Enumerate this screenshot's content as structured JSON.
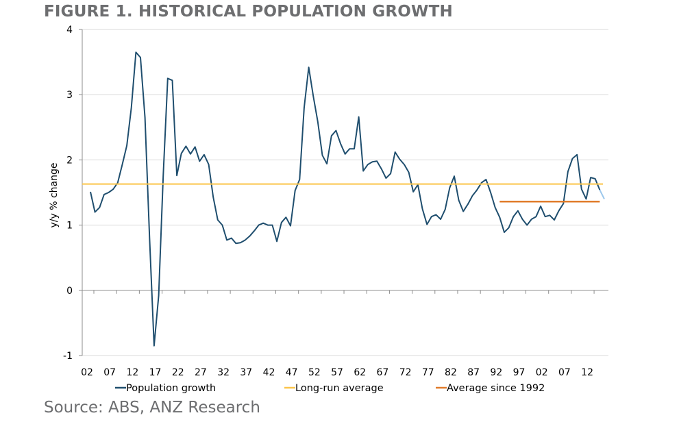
{
  "figure": {
    "title": "FIGURE 1. HISTORICAL POPULATION GROWTH",
    "source": "Source: ABS, ANZ Research"
  },
  "colors": {
    "population": "#1f4e6e",
    "population_tail": "#9dc8ec",
    "long_run": "#fbc54a",
    "since_1992": "#e07b2a",
    "grid": "#d9d9d9",
    "axis": "#8c8c8c"
  },
  "chart_data": {
    "type": "line",
    "title": "FIGURE 1. HISTORICAL POPULATION GROWTH",
    "xlabel": "",
    "ylabel": "y/y % change",
    "ylim": [
      -1,
      4
    ],
    "yticks": [
      -1,
      0,
      1,
      2,
      3,
      4
    ],
    "xlim": [
      1902,
      2015
    ],
    "xticks": [
      1902,
      1907,
      1912,
      1917,
      1922,
      1927,
      1932,
      1937,
      1942,
      1947,
      1952,
      1957,
      1962,
      1967,
      1972,
      1977,
      1982,
      1987,
      1992,
      1997,
      2002,
      2007,
      2012
    ],
    "xtick_labels": [
      "02",
      "07",
      "12",
      "17",
      "22",
      "27",
      "32",
      "37",
      "42",
      "47",
      "52",
      "57",
      "62",
      "67",
      "72",
      "77",
      "82",
      "87",
      "92",
      "97",
      "02",
      "07",
      "12"
    ],
    "grid": "horizontal",
    "legend_position": "bottom",
    "series": [
      {
        "name": "Population growth",
        "x": [
          1902,
          1903,
          1904,
          1905,
          1906,
          1907,
          1908,
          1909,
          1910,
          1911,
          1912,
          1913,
          1914,
          1915,
          1916,
          1917,
          1918,
          1919,
          1920,
          1921,
          1922,
          1923,
          1924,
          1925,
          1926,
          1927,
          1928,
          1929,
          1930,
          1931,
          1932,
          1933,
          1934,
          1935,
          1936,
          1937,
          1938,
          1939,
          1940,
          1941,
          1942,
          1943,
          1944,
          1945,
          1946,
          1947,
          1948,
          1949,
          1950,
          1951,
          1952,
          1953,
          1954,
          1955,
          1956,
          1957,
          1958,
          1959,
          1960,
          1961,
          1962,
          1963,
          1964,
          1965,
          1966,
          1967,
          1968,
          1969,
          1970,
          1971,
          1972,
          1973,
          1974,
          1975,
          1976,
          1977,
          1978,
          1979,
          1980,
          1981,
          1982,
          1983,
          1984,
          1985,
          1986,
          1987,
          1988,
          1989,
          1990,
          1991,
          1992,
          1993,
          1994,
          1995,
          1996,
          1997,
          1998,
          1999,
          2000,
          2001,
          2002,
          2003,
          2004,
          2005,
          2006,
          2007,
          2008,
          2009,
          2010,
          2011,
          2012,
          2013,
          2014
        ],
        "values": [
          1.51,
          1.2,
          1.27,
          1.47,
          1.5,
          1.55,
          1.65,
          1.93,
          2.22,
          2.8,
          3.65,
          3.57,
          2.65,
          0.8,
          -0.85,
          -0.08,
          1.75,
          3.25,
          3.22,
          1.76,
          2.1,
          2.21,
          2.09,
          2.2,
          1.98,
          2.08,
          1.93,
          1.43,
          1.08,
          1.0,
          0.77,
          0.8,
          0.72,
          0.73,
          0.77,
          0.83,
          0.91,
          1.0,
          1.03,
          1.0,
          1.0,
          0.75,
          1.04,
          1.12,
          0.99,
          1.53,
          1.7,
          2.8,
          3.42,
          2.98,
          2.58,
          2.07,
          1.94,
          2.37,
          2.45,
          2.25,
          2.09,
          2.17,
          2.17,
          2.66,
          1.83,
          1.93,
          1.97,
          1.98,
          1.86,
          1.72,
          1.79,
          2.12,
          2.01,
          1.93,
          1.81,
          1.51,
          1.62,
          1.25,
          1.01,
          1.13,
          1.16,
          1.09,
          1.24,
          1.57,
          1.75,
          1.38,
          1.21,
          1.32,
          1.45,
          1.54,
          1.65,
          1.7,
          1.5,
          1.27,
          1.12,
          0.89,
          0.96,
          1.13,
          1.22,
          1.09,
          1.0,
          1.09,
          1.13,
          1.29,
          1.13,
          1.15,
          1.08,
          1.22,
          1.33,
          1.82,
          2.02,
          2.08,
          1.55,
          1.4,
          1.73,
          1.71,
          1.54
        ]
      },
      {
        "name": "",
        "x": [
          2014,
          2015
        ],
        "values": [
          1.54,
          1.4
        ]
      },
      {
        "name": "Long-run average",
        "x": [
          1902,
          2015
        ],
        "values": [
          1.63,
          1.63
        ]
      },
      {
        "name": "Average since 1992",
        "x": [
          1992,
          2014
        ],
        "values": [
          1.36,
          1.36
        ]
      }
    ]
  },
  "legend": [
    {
      "label": "Population growth"
    },
    {
      "label": "Long-run average"
    },
    {
      "label": "Average since 1992"
    }
  ]
}
